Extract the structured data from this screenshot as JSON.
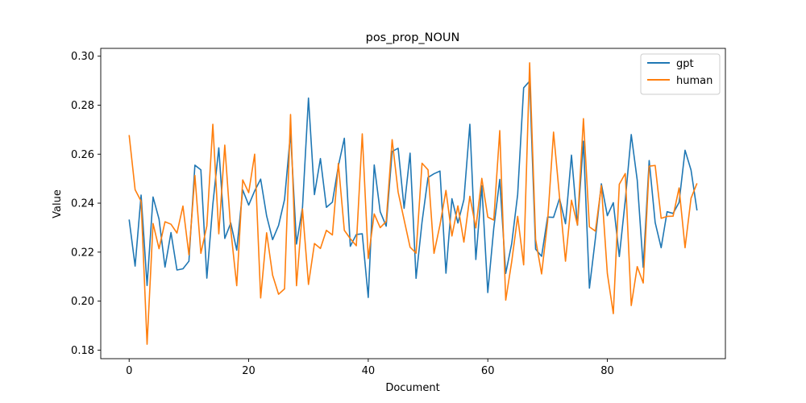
{
  "chart_data": {
    "type": "line",
    "title": "pos_prop_NOUN",
    "xlabel": "Document",
    "ylabel": "Value",
    "xlim": [
      -4.75,
      99.75
    ],
    "ylim": [
      0.1765,
      0.3032
    ],
    "xticks": [
      0,
      20,
      40,
      60,
      80
    ],
    "yticks": [
      0.18,
      0.2,
      0.22,
      0.24,
      0.26,
      0.28,
      0.3
    ],
    "ytick_labels": [
      "0.18",
      "0.20",
      "0.22",
      "0.24",
      "0.26",
      "0.28",
      "0.30"
    ],
    "legend_position": "top-right",
    "grid": false,
    "series": [
      {
        "name": "gpt",
        "color": "#1f77b4",
        "values": [
          0.2333,
          0.2143,
          0.2433,
          0.2064,
          0.2425,
          0.2335,
          0.2139,
          0.228,
          0.2127,
          0.2132,
          0.2163,
          0.2555,
          0.2536,
          0.2094,
          0.2395,
          0.2626,
          0.2256,
          0.2319,
          0.2208,
          0.2454,
          0.2392,
          0.245,
          0.2498,
          0.2348,
          0.2251,
          0.2309,
          0.2415,
          0.2687,
          0.2233,
          0.2382,
          0.2829,
          0.2435,
          0.2582,
          0.2383,
          0.2404,
          0.2552,
          0.2665,
          0.2224,
          0.2272,
          0.2275,
          0.2015,
          0.2556,
          0.2365,
          0.2306,
          0.2611,
          0.2624,
          0.2379,
          0.2604,
          0.2093,
          0.2323,
          0.2505,
          0.252,
          0.2531,
          0.2114,
          0.2418,
          0.2319,
          0.2414,
          0.2722,
          0.217,
          0.2471,
          0.2035,
          0.2298,
          0.2497,
          0.2113,
          0.2235,
          0.2436,
          0.2871,
          0.2898,
          0.2212,
          0.2183,
          0.2343,
          0.2342,
          0.2419,
          0.2316,
          0.2596,
          0.231,
          0.2653,
          0.2053,
          0.2256,
          0.2479,
          0.2349,
          0.2402,
          0.2182,
          0.2412,
          0.268,
          0.2494,
          0.2138,
          0.2574,
          0.2321,
          0.2218,
          0.2365,
          0.2358,
          0.2403,
          0.2616,
          0.2535,
          0.237
        ]
      },
      {
        "name": "human",
        "color": "#ff7f0e",
        "values": [
          0.2678,
          0.2455,
          0.2408,
          0.1824,
          0.2317,
          0.2214,
          0.2324,
          0.2314,
          0.2278,
          0.2388,
          0.2189,
          0.2513,
          0.2195,
          0.2307,
          0.2722,
          0.2275,
          0.2637,
          0.2292,
          0.2063,
          0.2495,
          0.2443,
          0.26,
          0.2013,
          0.2279,
          0.2106,
          0.2028,
          0.205,
          0.2762,
          0.2063,
          0.2376,
          0.2068,
          0.2235,
          0.2215,
          0.2289,
          0.227,
          0.2562,
          0.2289,
          0.2255,
          0.2226,
          0.2683,
          0.2174,
          0.2356,
          0.23,
          0.2325,
          0.2659,
          0.2445,
          0.2332,
          0.222,
          0.2196,
          0.2563,
          0.2536,
          0.2195,
          0.2311,
          0.2452,
          0.2266,
          0.2389,
          0.2241,
          0.2428,
          0.2299,
          0.2501,
          0.2343,
          0.2331,
          0.2696,
          0.2004,
          0.2161,
          0.2346,
          0.2148,
          0.2973,
          0.2252,
          0.2111,
          0.2323,
          0.269,
          0.2425,
          0.2163,
          0.2412,
          0.2311,
          0.2745,
          0.2303,
          0.2286,
          0.2472,
          0.2113,
          0.1949,
          0.2477,
          0.2521,
          0.1982,
          0.2141,
          0.2074,
          0.2551,
          0.2554,
          0.2338,
          0.2346,
          0.2347,
          0.2462,
          0.2218,
          0.242,
          0.2481
        ]
      }
    ]
  }
}
